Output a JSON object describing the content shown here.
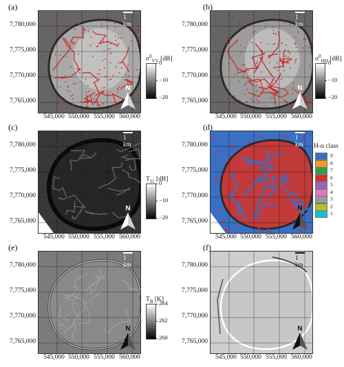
{
  "panels": [
    {
      "label": "(a)",
      "cbar_title": "σ",
      "cbar_sup": "0",
      "cbar_sub": "VV",
      "cbar_unit": "[dB]",
      "cbar_ticks": [
        "0",
        "−10",
        "−20"
      ]
    },
    {
      "label": "(b)",
      "cbar_title": "σ",
      "cbar_sup": "0",
      "cbar_sub": "HH",
      "cbar_unit": "[dB]",
      "cbar_ticks": [
        "0",
        "−10",
        "−20"
      ]
    },
    {
      "label": "(c)",
      "cbar_title": "T",
      "cbar_sup": "",
      "cbar_sub": "11",
      "cbar_unit": "[dB]",
      "cbar_ticks": [
        "0",
        "−10",
        "−20"
      ]
    },
    {
      "label": "(d)"
    },
    {
      "label": "(e)",
      "cbar_title": "T",
      "cbar_sup": "",
      "cbar_sub": "B",
      "cbar_unit": "[K]",
      "cbar_ticks": [
        "264",
        "262",
        "260"
      ]
    },
    {
      "label": "(f)"
    }
  ],
  "y_ticks": [
    "7,780,000",
    "7,775,000",
    "7,770,000",
    "7,765,000"
  ],
  "x_ticks": [
    "545,000",
    "550,000",
    "555,000",
    "560,000"
  ],
  "scale_label": "1 km",
  "north_label": "N",
  "ha_legend": {
    "title": "H-α class",
    "classes": [
      {
        "label": "9",
        "color": "#3a6fc4"
      },
      {
        "label": "8",
        "color": "#f39c1e"
      },
      {
        "label": "7",
        "color": "#2ea043"
      },
      {
        "label": "6",
        "color": "#d62d2d"
      },
      {
        "label": "5",
        "color": "#9467bd"
      },
      {
        "label": "4",
        "color": "#e377c2"
      },
      {
        "label": "3",
        "color": "#9a9a9a"
      },
      {
        "label": "2",
        "color": "#bcbd22"
      },
      {
        "label": "1",
        "color": "#17becf"
      }
    ]
  }
}
